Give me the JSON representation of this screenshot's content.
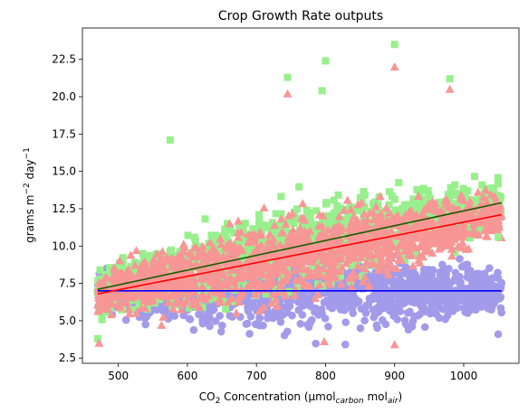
{
  "chart_data": {
    "type": "scatter",
    "title": "Crop Growth Rate outputs",
    "xlabel": {
      "prefix": "CO",
      "sub1": "2",
      "middle": " Concentration (µmol",
      "sub2": "carbon",
      "middle2": " mol",
      "sub3": "air",
      "suffix": ")"
    },
    "ylabel": {
      "prefix": "grams m",
      "sup1": "−2",
      "middle": " day",
      "sup2": "−1"
    },
    "xlim": [
      448,
      1080
    ],
    "ylim": [
      2.15,
      24.6
    ],
    "x_ticks": [
      500,
      600,
      700,
      800,
      900,
      1000
    ],
    "y_ticks": [
      "2.5",
      "5.0",
      "7.5",
      "10.0",
      "12.5",
      "15.0",
      "17.5",
      "20.0",
      "22.5"
    ],
    "grid": false,
    "series": [
      {
        "marker": "circle",
        "color": "#a29bea",
        "x_range": [
          470,
          1055
        ],
        "y_center": 7.0,
        "y_spread": 2.2,
        "trend": {
          "x": [
            470,
            1055
          ],
          "y": [
            7.0,
            7.0
          ],
          "color": "#0000ff"
        }
      },
      {
        "marker": "square",
        "color": "#98f08c",
        "x_range": [
          470,
          1055
        ],
        "y_start": 7.1,
        "y_end": 12.9,
        "y_spread": 2.4,
        "trend": {
          "x": [
            470,
            1055
          ],
          "y": [
            7.1,
            12.9
          ],
          "color": "#1a5c00"
        }
      },
      {
        "marker": "triangle",
        "color": "#f89696",
        "x_range": [
          470,
          1055
        ],
        "y_start": 6.8,
        "y_end": 12.1,
        "y_spread": 2.3,
        "trend": {
          "x": [
            470,
            1055
          ],
          "y": [
            6.8,
            12.1
          ],
          "color": "#ff0000"
        }
      }
    ],
    "extreme_points": [
      {
        "series": 1,
        "x": 900,
        "y": 23.5
      },
      {
        "series": 2,
        "x": 900,
        "y": 22.0
      },
      {
        "series": 1,
        "x": 800,
        "y": 22.4
      },
      {
        "series": 1,
        "x": 745,
        "y": 21.3
      },
      {
        "series": 1,
        "x": 980,
        "y": 21.2
      },
      {
        "series": 2,
        "x": 745,
        "y": 20.2
      },
      {
        "series": 1,
        "x": 795,
        "y": 20.4
      },
      {
        "series": 2,
        "x": 980,
        "y": 20.5
      },
      {
        "series": 1,
        "x": 575,
        "y": 17.1
      },
      {
        "series": 1,
        "x": 470,
        "y": 3.8
      },
      {
        "series": 2,
        "x": 472,
        "y": 3.5
      },
      {
        "series": 2,
        "x": 798,
        "y": 3.6
      },
      {
        "series": 2,
        "x": 900,
        "y": 3.4
      },
      {
        "series": 0,
        "x": 1050,
        "y": 4.1
      },
      {
        "series": 0,
        "x": 920,
        "y": 4.4
      },
      {
        "series": 1,
        "x": 1050,
        "y": 10.6
      }
    ]
  }
}
